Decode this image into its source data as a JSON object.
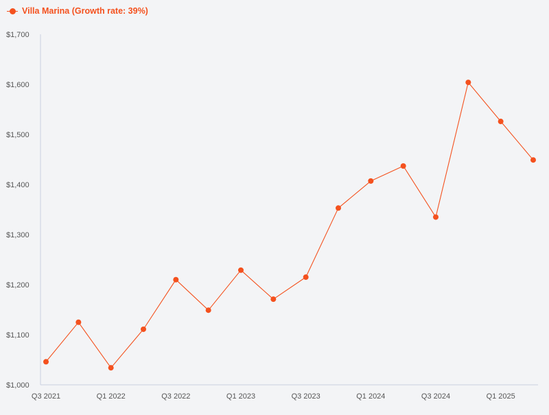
{
  "colors": {
    "series": "#f4511e",
    "axis": "#c9cfe0",
    "tick_text": "#555555",
    "background": "#f3f4f6"
  },
  "legend": {
    "label": "Villa Marina (Growth rate: 39%)",
    "position": "top-left"
  },
  "chart_data": {
    "type": "line",
    "title": "",
    "xlabel": "",
    "ylabel": "",
    "ylim": [
      1000,
      1700
    ],
    "yticks": [
      "$1,000",
      "$1,100",
      "$1,200",
      "$1,300",
      "$1,400",
      "$1,500",
      "$1,600",
      "$1,700"
    ],
    "grid": false,
    "categories": [
      "Q3 2021",
      "Q4 2021",
      "Q1 2022",
      "Q2 2022",
      "Q3 2022",
      "Q4 2022",
      "Q1 2023",
      "Q2 2023",
      "Q3 2023",
      "Q4 2023",
      "Q1 2024",
      "Q2 2024",
      "Q3 2024",
      "Q4 2024",
      "Q1 2025",
      "Q2 2025"
    ],
    "xtick_labels": [
      "Q3 2021",
      "",
      "Q1 2022",
      "",
      "Q3 2022",
      "",
      "Q1 2023",
      "",
      "Q3 2023",
      "",
      "Q1 2024",
      "",
      "Q3 2024",
      "",
      "Q1 2025",
      ""
    ],
    "series": [
      {
        "name": "Villa Marina (Growth rate: 39%)",
        "values": [
          1046,
          1125,
          1034,
          1111,
          1210,
          1149,
          1229,
          1171,
          1215,
          1353,
          1407,
          1437,
          1335,
          1604,
          1526,
          1449
        ]
      }
    ]
  }
}
